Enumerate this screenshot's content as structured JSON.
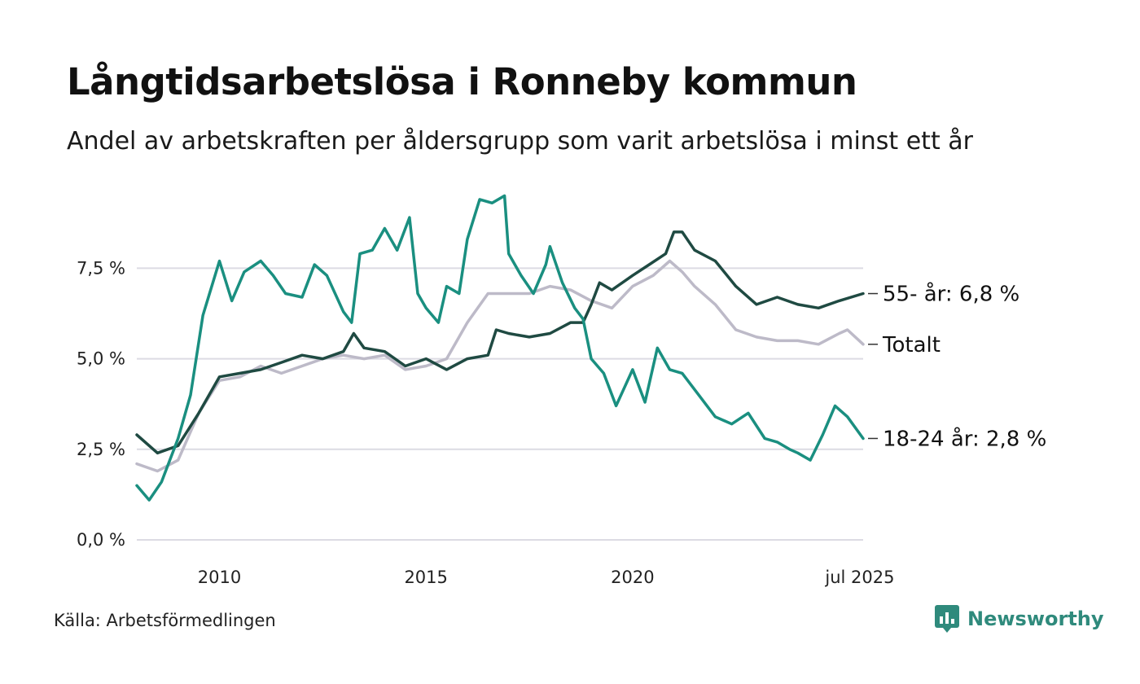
{
  "header": {
    "title": "Långtidsarbetslösa i Ronneby kommun",
    "subtitle": "Andel av arbetskraften per åldersgrupp som varit arbetslösa i minst ett år"
  },
  "footer": {
    "source": "Källa: Arbetsförmedlingen",
    "brand": "Newsworthy",
    "brand_icon": "bar-chart-speech-bubble-icon"
  },
  "colors": {
    "youth": "#1a8f80",
    "senior": "#1f4a42",
    "total": "#bdbac8",
    "grid": "#dcdbe3",
    "brand": "#2f8a7c"
  },
  "chart_data": {
    "type": "line",
    "ylim": [
      0,
      9.6
    ],
    "xlim": [
      2008.0,
      2025.58
    ],
    "y_ticks": [
      0,
      2.5,
      5,
      7.5
    ],
    "y_tick_labels": [
      "0,0 %",
      "2,5 %",
      "5,0 %",
      "7,5 %"
    ],
    "x_ticks": [
      2010,
      2015,
      2020,
      2025.5
    ],
    "x_tick_labels": [
      "2010",
      "2015",
      "2020",
      "jul 2025"
    ],
    "grid": true,
    "legend_placement": "end-of-line labels",
    "series": [
      {
        "key": "senior",
        "label": "55- år: 6,8 %",
        "x": [
          2008.0,
          2008.5,
          2009.0,
          2009.5,
          2010.0,
          2010.5,
          2011.0,
          2011.5,
          2012.0,
          2012.5,
          2013.0,
          2013.25,
          2013.5,
          2014.0,
          2014.5,
          2015.0,
          2015.5,
          2016.0,
          2016.5,
          2016.7,
          2017.0,
          2017.5,
          2018.0,
          2018.5,
          2018.8,
          2019.0,
          2019.2,
          2019.5,
          2020.0,
          2020.4,
          2020.8,
          2021.0,
          2021.2,
          2021.5,
          2022.0,
          2022.5,
          2023.0,
          2023.5,
          2024.0,
          2024.5,
          2025.0,
          2025.58
        ],
        "y": [
          2.9,
          2.4,
          2.6,
          3.5,
          4.5,
          4.6,
          4.7,
          4.9,
          5.1,
          5.0,
          5.2,
          5.7,
          5.3,
          5.2,
          4.8,
          5.0,
          4.7,
          5.0,
          5.1,
          5.8,
          5.7,
          5.6,
          5.7,
          6.0,
          6.0,
          6.5,
          7.1,
          6.9,
          7.3,
          7.6,
          7.9,
          8.5,
          8.5,
          8.0,
          7.7,
          7.0,
          6.5,
          6.7,
          6.5,
          6.4,
          6.6,
          6.8
        ]
      },
      {
        "key": "total",
        "label": "Totalt",
        "x": [
          2008.0,
          2008.5,
          2009.0,
          2009.5,
          2010.0,
          2010.5,
          2011.0,
          2011.5,
          2012.0,
          2012.5,
          2013.0,
          2013.5,
          2014.0,
          2014.5,
          2015.0,
          2015.5,
          2016.0,
          2016.5,
          2017.0,
          2017.5,
          2018.0,
          2018.5,
          2019.0,
          2019.5,
          2020.0,
          2020.5,
          2020.9,
          2021.2,
          2021.5,
          2022.0,
          2022.5,
          2023.0,
          2023.5,
          2024.0,
          2024.5,
          2025.0,
          2025.2,
          2025.58
        ],
        "y": [
          2.1,
          1.9,
          2.2,
          3.5,
          4.4,
          4.5,
          4.8,
          4.6,
          4.8,
          5.0,
          5.1,
          5.0,
          5.1,
          4.7,
          4.8,
          5.0,
          6.0,
          6.8,
          6.8,
          6.8,
          7.0,
          6.9,
          6.6,
          6.4,
          7.0,
          7.3,
          7.7,
          7.4,
          7.0,
          6.5,
          5.8,
          5.6,
          5.5,
          5.5,
          5.4,
          5.7,
          5.8,
          5.4
        ]
      },
      {
        "key": "youth",
        "label": "18-24 år: 2,8 %",
        "x": [
          2008.0,
          2008.3,
          2008.6,
          2009.0,
          2009.3,
          2009.6,
          2010.0,
          2010.3,
          2010.6,
          2011.0,
          2011.3,
          2011.6,
          2012.0,
          2012.3,
          2012.6,
          2013.0,
          2013.2,
          2013.4,
          2013.7,
          2014.0,
          2014.3,
          2014.6,
          2014.8,
          2015.0,
          2015.3,
          2015.5,
          2015.8,
          2016.0,
          2016.3,
          2016.6,
          2016.9,
          2017.0,
          2017.3,
          2017.6,
          2017.9,
          2018.0,
          2018.3,
          2018.6,
          2018.8,
          2019.0,
          2019.3,
          2019.6,
          2020.0,
          2020.3,
          2020.6,
          2020.9,
          2021.2,
          2021.6,
          2022.0,
          2022.4,
          2022.8,
          2023.2,
          2023.5,
          2023.8,
          2024.0,
          2024.3,
          2024.6,
          2024.9,
          2025.2,
          2025.58
        ],
        "y": [
          1.5,
          1.1,
          1.6,
          2.8,
          4.0,
          6.2,
          7.7,
          6.6,
          7.4,
          7.7,
          7.3,
          6.8,
          6.7,
          7.6,
          7.3,
          6.3,
          6.0,
          7.9,
          8.0,
          8.6,
          8.0,
          8.9,
          6.8,
          6.4,
          6.0,
          7.0,
          6.8,
          8.3,
          9.4,
          9.3,
          9.5,
          7.9,
          7.3,
          6.8,
          7.6,
          8.1,
          7.1,
          6.4,
          6.1,
          5.0,
          4.6,
          3.7,
          4.7,
          3.8,
          5.3,
          4.7,
          4.6,
          4.0,
          3.4,
          3.2,
          3.5,
          2.8,
          2.7,
          2.5,
          2.4,
          2.2,
          2.9,
          3.7,
          3.4,
          2.8
        ]
      }
    ]
  }
}
